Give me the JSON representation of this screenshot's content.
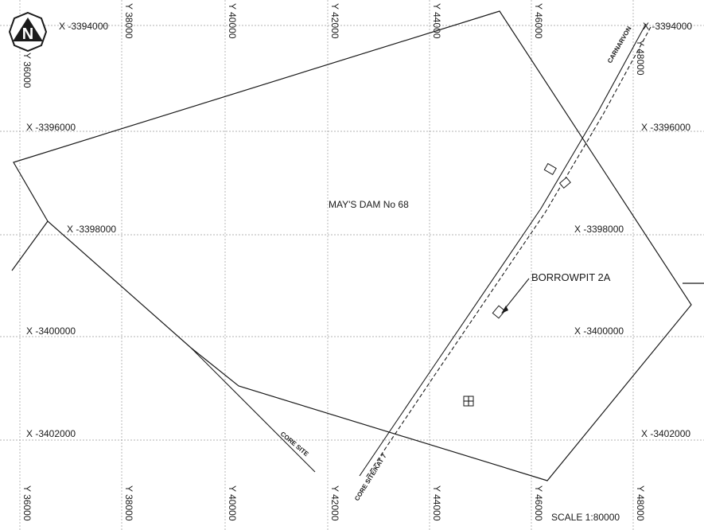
{
  "map": {
    "north_label": "N",
    "x_labels": {
      "x1": "X -3394000",
      "x2": "X -3396000",
      "x3": "X -3398000",
      "x4": "X -3400000",
      "x5": "X -3402000"
    },
    "y_labels": {
      "y36": "Y 36000",
      "y38": "Y 38000",
      "y40": "Y 40000",
      "y42": "Y 42000",
      "y44": "Y 44000",
      "y46": "Y 46000",
      "y48": "Y 48000"
    },
    "farm_name": "MAY'S DAM No 68",
    "borrowpit": "BORROWPIT 2A",
    "roads": {
      "carnarvon": "CARNARVON",
      "core_site": "CORE SITE",
      "core_site_kat": "CORE SITE/KAT 7"
    },
    "scale": "SCALE 1:80000",
    "colors": {
      "ink": "#1a1a1a",
      "grid": "#9a9a9a",
      "background": "#ffffff"
    }
  }
}
